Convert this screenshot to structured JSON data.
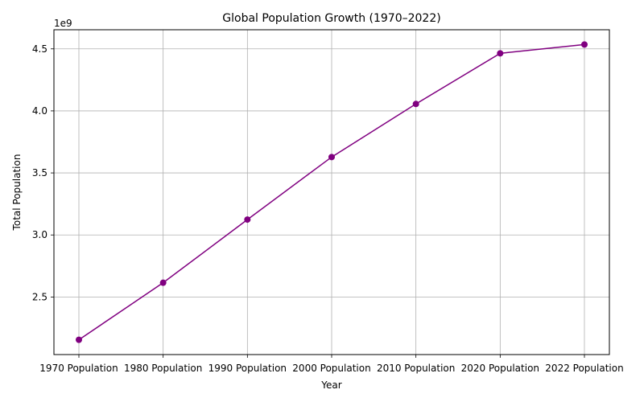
{
  "chart_data": {
    "type": "line",
    "title": "Global Population Growth (1970–2022)",
    "xlabel": "Year",
    "ylabel": "Total Population",
    "y_offset_label": "1e9",
    "categories": [
      "1970 Population",
      "1980 Population",
      "1990 Population",
      "2000 Population",
      "2010 Population",
      "2020 Population",
      "2022 Population"
    ],
    "series": [
      {
        "values": [
          2155000000,
          2615000000,
          3124000000,
          3628000000,
          4056000000,
          4464000000,
          4535000000
        ],
        "color": "#800080",
        "marker": "circle"
      }
    ],
    "y_ticks": [
      2.5,
      3.0,
      3.5,
      4.0,
      4.5
    ],
    "y_tick_labels": [
      "2.5",
      "3.0",
      "3.5",
      "4.0",
      "4.5"
    ],
    "y_scale": 1000000000,
    "ylim": [
      2036000000,
      4654000000
    ],
    "grid": true,
    "legend": "none"
  }
}
